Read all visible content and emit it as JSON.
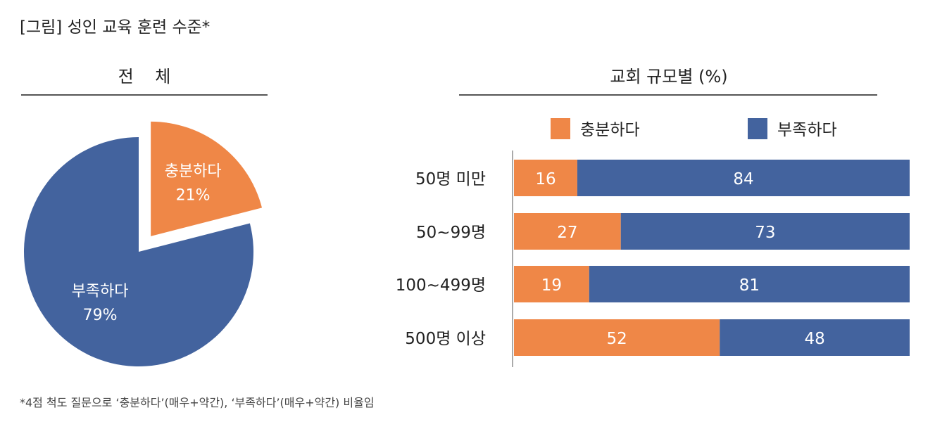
{
  "title": "[그림] 성인 교육 훈련 수준*",
  "footnote": "*4점 척도 질문으로 ‘충분하다’(매우+약간), ‘부족하다’(매우+약간) 비율임",
  "colors": {
    "sufficient": "#EF8747",
    "insufficient": "#43639E"
  },
  "chart_data": [
    {
      "type": "pie",
      "title": "전    체",
      "slices": [
        {
          "label": "충분하다",
          "value": 21,
          "display": "21%",
          "exploded": true
        },
        {
          "label": "부족하다",
          "value": 79,
          "display": "79%"
        }
      ]
    },
    {
      "type": "bar",
      "orientation": "horizontal-stacked",
      "title": "교회 규모별 (%)",
      "legend": [
        "충분하다",
        "부족하다"
      ],
      "legend_position": "top",
      "categories": [
        "50명 미만",
        "50~99명",
        "100~499명",
        "500명 이상"
      ],
      "series": [
        {
          "name": "충분하다",
          "values": [
            16,
            27,
            19,
            52
          ]
        },
        {
          "name": "부족하다",
          "values": [
            84,
            73,
            81,
            48
          ]
        }
      ],
      "xlim": [
        0,
        100
      ]
    }
  ]
}
